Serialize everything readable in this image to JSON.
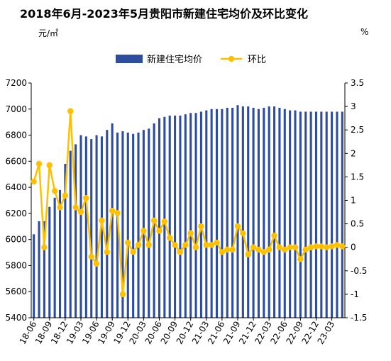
{
  "chart_data": {
    "type": "bar+line",
    "title": "2018年6月-2023年5月贵阳市新建住宅均价及环比变化",
    "y_left_unit": "元/㎡",
    "y_right_unit": "%",
    "legend_position": "top",
    "y_left_range": [
      5400,
      7200
    ],
    "y_right_range": [
      -1.5,
      3.5
    ],
    "y_left_ticks": [
      "7200",
      "7000",
      "6800",
      "6600",
      "6400",
      "6200",
      "6000",
      "5800",
      "5600",
      "5400"
    ],
    "y_right_ticks": [
      "3.5",
      "3",
      "2.5",
      "2",
      "1.5",
      "1",
      "0.5",
      "0",
      "-0.5",
      "-1",
      "-1.5"
    ],
    "x_tick_labels": [
      "18-06",
      "18-09",
      "18-12",
      "19-03",
      "19-06",
      "19-09",
      "19-12",
      "20-03",
      "20-06",
      "20-09",
      "20-12",
      "21-03",
      "21-06",
      "21-09",
      "21-12",
      "22-03",
      "22-06",
      "22-09",
      "22-12",
      "23-03"
    ],
    "categories": [
      "18-06",
      "18-07",
      "18-08",
      "18-09",
      "18-10",
      "18-11",
      "18-12",
      "19-01",
      "19-02",
      "19-03",
      "19-04",
      "19-05",
      "19-06",
      "19-07",
      "19-08",
      "19-09",
      "19-10",
      "19-11",
      "19-12",
      "20-01",
      "20-02",
      "20-03",
      "20-04",
      "20-05",
      "20-06",
      "20-07",
      "20-08",
      "20-09",
      "20-10",
      "20-11",
      "20-12",
      "21-01",
      "21-02",
      "21-03",
      "21-04",
      "21-05",
      "21-06",
      "21-07",
      "21-08",
      "21-09",
      "21-10",
      "21-11",
      "21-12",
      "22-01",
      "22-02",
      "22-03",
      "22-04",
      "22-05",
      "22-06",
      "22-07",
      "22-08",
      "22-09",
      "22-10",
      "22-11",
      "22-12",
      "23-01",
      "23-02",
      "23-03",
      "23-04",
      "23-05"
    ],
    "series": [
      {
        "name": "新建住宅均价",
        "type": "bar",
        "axis": "left",
        "color": "#2E4D9E",
        "values": [
          6040,
          6140,
          6140,
          6250,
          6320,
          6380,
          6580,
          6680,
          6730,
          6800,
          6790,
          6770,
          6800,
          6790,
          6840,
          6890,
          6820,
          6830,
          6820,
          6810,
          6820,
          6840,
          6850,
          6890,
          6930,
          6940,
          6950,
          6950,
          6950,
          6960,
          6970,
          6970,
          6980,
          6990,
          7000,
          7000,
          7000,
          7010,
          7010,
          7030,
          7020,
          7020,
          7010,
          7000,
          7010,
          7020,
          7020,
          7010,
          7000,
          6990,
          6990,
          6980,
          6980,
          6980,
          6980,
          6980,
          6980,
          6980,
          6980,
          6980
        ]
      },
      {
        "name": "环比",
        "type": "line",
        "axis": "right",
        "color": "#FFC000",
        "values": [
          1.4,
          1.78,
          0.0,
          1.75,
          1.2,
          0.85,
          1.1,
          2.9,
          0.85,
          0.75,
          1.05,
          -0.2,
          -0.35,
          0.57,
          -0.1,
          0.78,
          0.73,
          -1.0,
          0.1,
          -0.1,
          0.05,
          0.35,
          0.05,
          0.57,
          0.35,
          0.55,
          0.2,
          0.05,
          -0.1,
          0.05,
          0.3,
          0.0,
          0.45,
          0.05,
          0.05,
          0.1,
          -0.1,
          -0.05,
          -0.05,
          0.45,
          0.3,
          -0.15,
          0.0,
          -0.05,
          -0.1,
          -0.05,
          0.25,
          0.0,
          -0.05,
          0.0,
          0.0,
          -0.25,
          -0.05,
          0.0,
          0.02,
          0.02,
          0.0,
          0.02,
          0.05,
          0.02
        ]
      }
    ]
  }
}
